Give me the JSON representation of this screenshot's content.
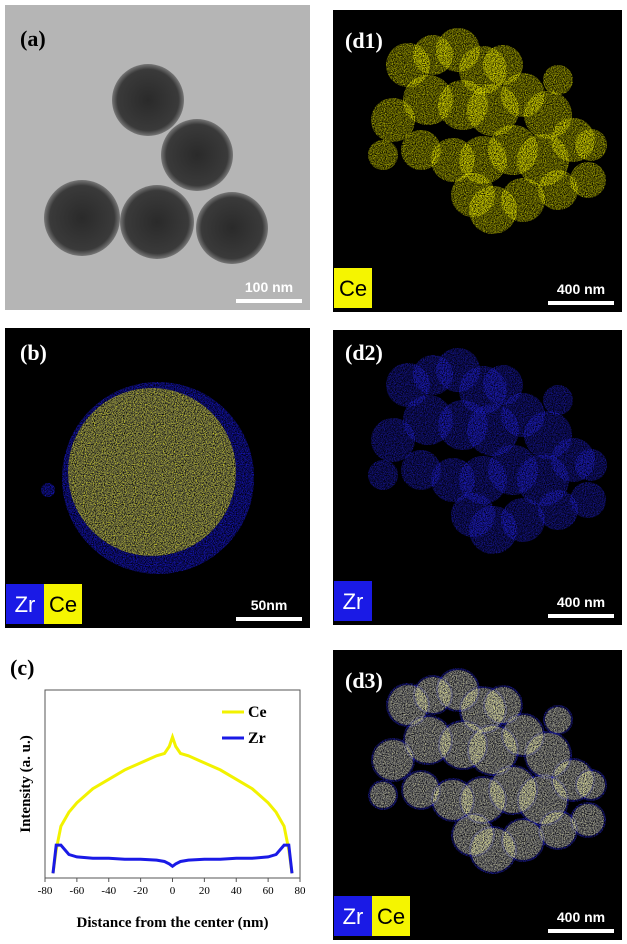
{
  "panels": [
    {
      "label": "(a)",
      "scale_bar": "100 nm"
    },
    {
      "label": "(d1)",
      "elements": [
        "Ce"
      ],
      "scale_bar": "400 nm"
    },
    {
      "label": "(b)",
      "elements": [
        "Zr",
        "Ce"
      ],
      "scale_bar": "50nm"
    },
    {
      "label": "(d2)",
      "elements": [
        "Zr"
      ],
      "scale_bar": "400 nm"
    },
    {
      "label": "(c)"
    },
    {
      "label": "(d3)",
      "elements": [
        "Zr",
        "Ce"
      ],
      "scale_bar": "400 nm"
    }
  ],
  "chart_data": {
    "type": "line",
    "x_label": "Distance from the center (nm)",
    "y_label": "Intensity (a. u.)",
    "x": [
      -75,
      -73,
      -70,
      -65,
      -60,
      -50,
      -40,
      -30,
      -20,
      -10,
      -5,
      -2,
      0,
      2,
      5,
      10,
      20,
      30,
      40,
      50,
      60,
      65,
      70,
      73,
      75
    ],
    "series": [
      {
        "name": "Ce",
        "color": "#f2f200",
        "values": [
          0.1,
          0.6,
          1.1,
          1.4,
          1.6,
          1.9,
          2.1,
          2.3,
          2.45,
          2.6,
          2.65,
          2.8,
          3.0,
          2.8,
          2.65,
          2.6,
          2.45,
          2.3,
          2.1,
          1.9,
          1.6,
          1.4,
          1.1,
          0.6,
          0.1
        ]
      },
      {
        "name": "Zr",
        "color": "#1a1ae6",
        "values": [
          0.1,
          0.7,
          0.7,
          0.5,
          0.45,
          0.42,
          0.42,
          0.4,
          0.4,
          0.38,
          0.35,
          0.3,
          0.25,
          0.3,
          0.35,
          0.38,
          0.4,
          0.4,
          0.42,
          0.42,
          0.45,
          0.5,
          0.7,
          0.7,
          0.1
        ]
      }
    ],
    "xlim": [
      -80,
      80
    ],
    "xticks": [
      -80,
      -60,
      -40,
      -20,
      0,
      20,
      40,
      60,
      80
    ],
    "ylim": [
      0,
      4
    ]
  }
}
